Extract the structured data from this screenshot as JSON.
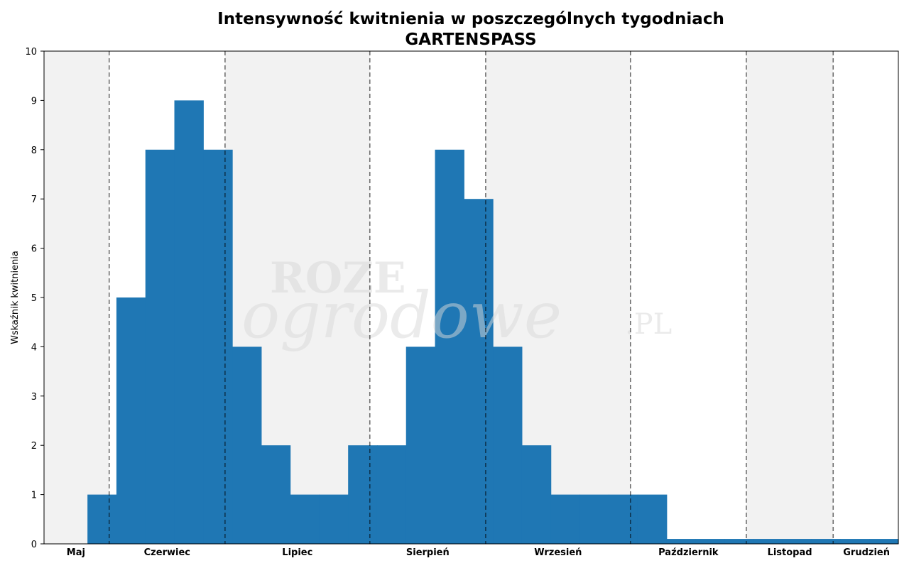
{
  "chart_data": {
    "type": "bar",
    "title": "Intensywność kwitnienia w poszczególnych tygodniach",
    "subtitle": "GARTENSPASS",
    "ylabel": "Wskaźnik kwitnienia",
    "ylim": [
      0,
      10
    ],
    "yticks": [
      0,
      1,
      2,
      3,
      4,
      5,
      6,
      7,
      8,
      9,
      10
    ],
    "week_range": [
      0,
      29.5
    ],
    "weeks": [
      1,
      2,
      3,
      4,
      5,
      6,
      7,
      8,
      9,
      10,
      11,
      12,
      13,
      14,
      15,
      16,
      17,
      18,
      19,
      20,
      21,
      22,
      23,
      24,
      25,
      26,
      27,
      28,
      29
    ],
    "values": [
      0,
      1,
      5,
      8,
      9,
      8,
      4,
      2,
      1,
      1,
      2,
      2,
      4,
      8,
      7,
      4,
      2,
      1,
      1,
      1,
      1,
      0.1,
      0.1,
      0.1,
      0.1,
      0.1,
      0.1,
      0.1,
      0.1
    ],
    "bar_color": "#1f77b4",
    "month_boundaries": [
      2.25,
      6.25,
      11.25,
      15.25,
      20.25,
      24.25,
      27.25
    ],
    "months": [
      {
        "label": "Maj",
        "start": 0,
        "end": 2.25,
        "label_pos": 1.1,
        "shaded": true
      },
      {
        "label": "Czerwiec",
        "start": 2.25,
        "end": 6.25,
        "label_pos": 4.25,
        "shaded": false
      },
      {
        "label": "Lipiec",
        "start": 6.25,
        "end": 11.25,
        "label_pos": 8.75,
        "shaded": true
      },
      {
        "label": "Sierpień",
        "start": 11.25,
        "end": 15.25,
        "label_pos": 13.25,
        "shaded": false
      },
      {
        "label": "Wrzesień",
        "start": 15.25,
        "end": 20.25,
        "label_pos": 17.75,
        "shaded": true
      },
      {
        "label": "Październik",
        "start": 20.25,
        "end": 24.25,
        "label_pos": 22.25,
        "shaded": false
      },
      {
        "label": "Listopad",
        "start": 24.25,
        "end": 27.25,
        "label_pos": 25.75,
        "shaded": true
      },
      {
        "label": "Grudzień",
        "start": 27.25,
        "end": 29.5,
        "label_pos": 28.4,
        "shaded": false
      }
    ],
    "shade_color": "#f2f2f2",
    "grid": false,
    "legend": "none"
  },
  "watermark": {
    "line1": "ROZE",
    "line2": "ogrodowe",
    "line3": ".PL"
  }
}
